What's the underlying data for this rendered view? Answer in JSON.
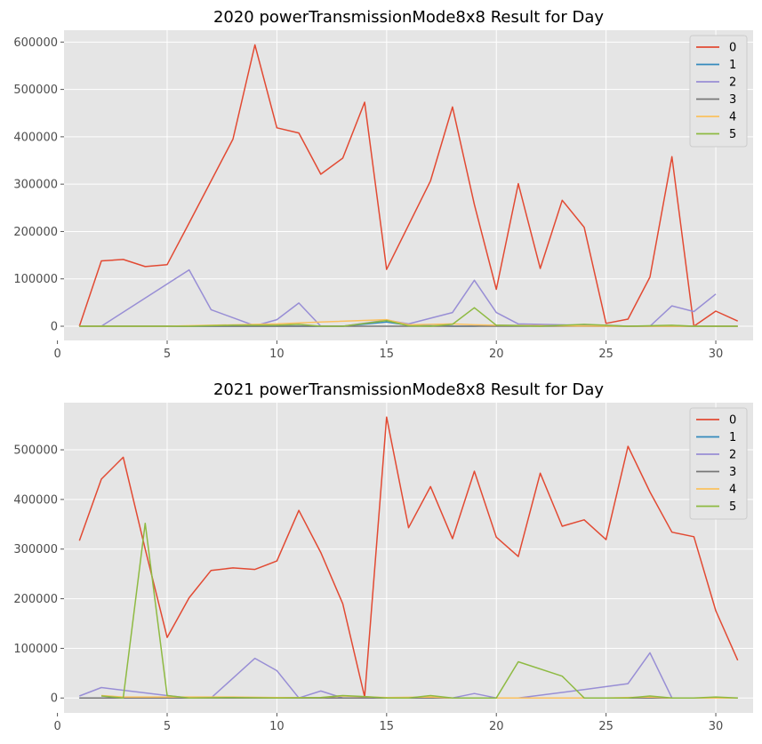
{
  "chart_data": [
    {
      "type": "line",
      "title": "2020 powerTransmissionMode8x8 Result for Day",
      "xlabel": "",
      "ylabel": "",
      "xlim": [
        0.3,
        31.7
      ],
      "ylim": [
        -30000,
        625000
      ],
      "xticks": [
        "0",
        "5",
        "10",
        "15",
        "20",
        "25",
        "30"
      ],
      "yticks": [
        "0",
        "100000",
        "200000",
        "300000",
        "400000",
        "500000",
        "600000"
      ],
      "grid": true,
      "legend_position": "top-right",
      "series": [
        {
          "name": "0",
          "color": "#E24A33",
          "x": [
            1,
            2,
            3,
            4,
            5,
            6,
            8,
            9,
            10,
            11,
            12,
            13,
            14,
            15,
            17,
            18,
            19,
            20,
            21,
            22,
            23,
            24,
            25,
            26,
            27,
            28,
            29,
            30,
            31
          ],
          "y": [
            0,
            138000,
            141000,
            126000,
            130000,
            218000,
            395000,
            594000,
            419000,
            408000,
            321000,
            355000,
            473000,
            120000,
            307000,
            463000,
            257000,
            78000,
            301000,
            122000,
            266000,
            209000,
            6000,
            15000,
            104000,
            358000,
            0,
            32000,
            11000
          ]
        },
        {
          "name": "1",
          "color": "#348ABD",
          "x": [
            1,
            5,
            10,
            13,
            15,
            16,
            18,
            19,
            20,
            25,
            30,
            31
          ],
          "y": [
            0,
            0,
            0,
            0,
            9000,
            2000,
            0,
            0,
            2000,
            0,
            0,
            0
          ]
        },
        {
          "name": "2",
          "color": "#988ED5",
          "x": [
            1,
            2,
            6,
            7,
            9,
            10,
            11,
            12,
            13,
            15,
            16,
            18,
            19,
            20,
            21,
            24,
            25,
            26,
            27,
            28,
            29,
            30
          ],
          "y": [
            0,
            0,
            119000,
            35000,
            1000,
            14000,
            49000,
            0,
            0,
            13000,
            5000,
            29000,
            97000,
            29000,
            5000,
            2000,
            2000,
            0,
            0,
            43000,
            31000,
            68000
          ]
        },
        {
          "name": "3",
          "color": "#777777",
          "x": [
            1,
            31
          ],
          "y": [
            0,
            0
          ]
        },
        {
          "name": "4",
          "color": "#FBC15E",
          "x": [
            1,
            5,
            7,
            10,
            12,
            15,
            16,
            18,
            19,
            20,
            25,
            30,
            31
          ],
          "y": [
            0,
            0,
            2000,
            5000,
            9000,
            14000,
            3000,
            5000,
            3000,
            2000,
            0,
            0,
            0
          ]
        },
        {
          "name": "5",
          "color": "#8EBA42",
          "x": [
            1,
            2,
            6,
            8,
            10,
            11,
            12,
            13,
            15,
            16,
            17,
            18,
            19,
            20,
            22,
            24,
            25,
            26,
            28,
            29,
            30,
            31
          ],
          "y": [
            0,
            0,
            0,
            2000,
            2000,
            4000,
            0,
            0,
            12000,
            1000,
            0,
            4000,
            39000,
            2000,
            0,
            4000,
            2000,
            0,
            2000,
            0,
            0,
            0
          ]
        }
      ]
    },
    {
      "type": "line",
      "title": "2021 powerTransmissionMode8x8 Result for Day",
      "xlabel": "",
      "ylabel": "",
      "xlim": [
        0.3,
        31.7
      ],
      "ylim": [
        -30000,
        595000
      ],
      "xticks": [
        "0",
        "5",
        "10",
        "15",
        "20",
        "25",
        "30"
      ],
      "yticks": [
        "0",
        "100000",
        "200000",
        "300000",
        "400000",
        "500000"
      ],
      "grid": true,
      "legend_position": "top-right",
      "series": [
        {
          "name": "0",
          "color": "#E24A33",
          "x": [
            1,
            2,
            3,
            4,
            5,
            6,
            7,
            8,
            9,
            10,
            11,
            12,
            13,
            14,
            15,
            16,
            17,
            18,
            19,
            20,
            21,
            22,
            23,
            24,
            25,
            26,
            27,
            28,
            29,
            30,
            31
          ],
          "y": [
            317000,
            441000,
            485000,
            300000,
            122000,
            202000,
            257000,
            262000,
            259000,
            276000,
            378000,
            293000,
            190000,
            2000,
            566000,
            343000,
            426000,
            321000,
            457000,
            324000,
            285000,
            453000,
            346000,
            359000,
            319000,
            507000,
            415000,
            334000,
            325000,
            176000,
            76000
          ]
        },
        {
          "name": "1",
          "color": "#348ABD",
          "x": [
            1,
            31
          ],
          "y": [
            0,
            0
          ]
        },
        {
          "name": "2",
          "color": "#988ED5",
          "x": [
            1,
            2,
            5,
            6,
            7,
            9,
            10,
            11,
            12,
            13,
            15,
            18,
            19,
            20,
            21,
            24,
            26,
            27,
            28,
            29,
            30
          ],
          "y": [
            4000,
            21000,
            5000,
            0,
            0,
            80000,
            55000,
            0,
            14000,
            0,
            0,
            0,
            9000,
            0,
            0,
            17000,
            29000,
            91000,
            0,
            0,
            0
          ]
        },
        {
          "name": "3",
          "color": "#777777",
          "x": [
            1,
            31
          ],
          "y": [
            0,
            0
          ]
        },
        {
          "name": "4",
          "color": "#FBC15E",
          "x": [
            2,
            3,
            5,
            8,
            10,
            12,
            13,
            15,
            17,
            18,
            20,
            25,
            27,
            28,
            30,
            31
          ],
          "y": [
            5000,
            2000,
            2000,
            2000,
            1000,
            1000,
            4000,
            1000,
            2000,
            0,
            0,
            0,
            2000,
            0,
            0,
            0
          ]
        },
        {
          "name": "5",
          "color": "#8EBA42",
          "x": [
            2,
            3,
            4,
            5,
            6,
            8,
            10,
            12,
            13,
            14,
            15,
            16,
            17,
            18,
            20,
            21,
            23,
            24,
            25,
            26,
            27,
            28,
            29,
            30,
            31
          ],
          "y": [
            4000,
            0,
            352000,
            5000,
            0,
            1000,
            0,
            1000,
            5000,
            3000,
            0,
            0,
            5000,
            0,
            0,
            73000,
            44000,
            0,
            0,
            0,
            4000,
            0,
            0,
            2000,
            0
          ]
        }
      ]
    }
  ]
}
